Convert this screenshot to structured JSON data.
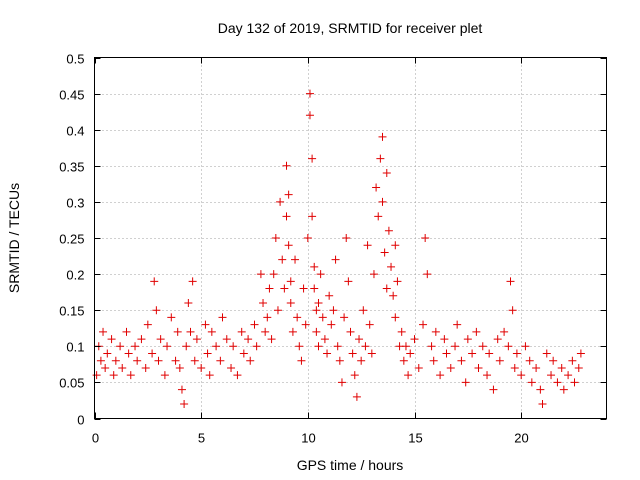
{
  "chart_data": {
    "type": "scatter",
    "title": "Day 132 of 2019, SRMTID for receiver plet",
    "xlabel": "GPS time / hours",
    "ylabel": "SRMTID / TECUs",
    "xlim": [
      0,
      24
    ],
    "ylim": [
      0,
      0.5
    ],
    "xticks": [
      0,
      5,
      10,
      15,
      20
    ],
    "xtick_labels": [
      "0",
      "5",
      "10",
      "15",
      "20"
    ],
    "yticks": [
      0,
      0.05,
      0.1,
      0.15,
      0.2,
      0.25,
      0.3,
      0.35,
      0.4,
      0.45,
      0.5
    ],
    "ytick_labels": [
      "0",
      "0.05",
      "0.1",
      "0.15",
      "0.2",
      "0.25",
      "0.3",
      "0.35",
      "0.4",
      "0.45",
      "0.5"
    ],
    "grid": true,
    "marker": "+",
    "color": "#e00000",
    "series": [
      {
        "name": "SRMTID",
        "x": [
          0.1,
          0.2,
          0.3,
          0.4,
          0.5,
          0.6,
          0.8,
          0.9,
          1.0,
          1.2,
          1.3,
          1.5,
          1.6,
          1.7,
          1.9,
          2.0,
          2.2,
          2.4,
          2.5,
          2.7,
          2.8,
          2.9,
          3.0,
          3.1,
          3.3,
          3.4,
          3.6,
          3.8,
          3.9,
          4.0,
          4.1,
          4.2,
          4.3,
          4.4,
          4.5,
          4.6,
          4.7,
          4.8,
          5.0,
          5.2,
          5.3,
          5.4,
          5.5,
          5.7,
          5.9,
          6.0,
          6.2,
          6.4,
          6.5,
          6.7,
          6.9,
          7.0,
          7.2,
          7.3,
          7.5,
          7.6,
          7.8,
          7.9,
          8.0,
          8.1,
          8.2,
          8.3,
          8.4,
          8.5,
          8.6,
          8.7,
          8.8,
          8.9,
          9.0,
          9.0,
          9.1,
          9.1,
          9.2,
          9.2,
          9.3,
          9.4,
          9.5,
          9.6,
          9.7,
          9.8,
          9.9,
          10.0,
          10.1,
          10.1,
          10.2,
          10.2,
          10.3,
          10.3,
          10.4,
          10.4,
          10.5,
          10.5,
          10.6,
          10.7,
          10.8,
          10.9,
          11.0,
          11.1,
          11.2,
          11.3,
          11.4,
          11.5,
          11.6,
          11.7,
          11.8,
          11.9,
          12.0,
          12.1,
          12.2,
          12.3,
          12.4,
          12.5,
          12.6,
          12.7,
          12.8,
          12.9,
          13.0,
          13.1,
          13.2,
          13.3,
          13.4,
          13.5,
          13.5,
          13.6,
          13.7,
          13.7,
          13.8,
          13.9,
          14.0,
          14.1,
          14.1,
          14.2,
          14.3,
          14.4,
          14.5,
          14.6,
          14.7,
          14.8,
          15.0,
          15.2,
          15.4,
          15.5,
          15.6,
          15.8,
          15.9,
          16.0,
          16.2,
          16.4,
          16.5,
          16.7,
          16.9,
          17.0,
          17.2,
          17.4,
          17.5,
          17.7,
          17.9,
          18.0,
          18.2,
          18.4,
          18.5,
          18.7,
          18.9,
          19.0,
          19.2,
          19.4,
          19.5,
          19.6,
          19.7,
          19.8,
          20.0,
          20.2,
          20.4,
          20.5,
          20.7,
          20.9,
          21.0,
          21.2,
          21.4,
          21.5,
          21.7,
          21.9,
          22.0,
          22.2,
          22.4,
          22.5,
          22.7,
          22.8
        ],
        "y": [
          0.06,
          0.1,
          0.08,
          0.12,
          0.07,
          0.09,
          0.11,
          0.06,
          0.08,
          0.1,
          0.07,
          0.12,
          0.09,
          0.06,
          0.1,
          0.08,
          0.11,
          0.07,
          0.13,
          0.09,
          0.19,
          0.15,
          0.08,
          0.11,
          0.06,
          0.1,
          0.14,
          0.08,
          0.12,
          0.07,
          0.04,
          0.02,
          0.1,
          0.16,
          0.12,
          0.19,
          0.08,
          0.11,
          0.07,
          0.13,
          0.09,
          0.06,
          0.12,
          0.1,
          0.08,
          0.14,
          0.11,
          0.07,
          0.1,
          0.06,
          0.12,
          0.09,
          0.11,
          0.08,
          0.13,
          0.1,
          0.2,
          0.16,
          0.12,
          0.14,
          0.18,
          0.11,
          0.2,
          0.25,
          0.15,
          0.3,
          0.22,
          0.18,
          0.35,
          0.28,
          0.24,
          0.31,
          0.19,
          0.16,
          0.12,
          0.22,
          0.14,
          0.1,
          0.08,
          0.18,
          0.13,
          0.25,
          0.45,
          0.42,
          0.36,
          0.28,
          0.21,
          0.18,
          0.15,
          0.12,
          0.1,
          0.16,
          0.2,
          0.14,
          0.11,
          0.09,
          0.17,
          0.13,
          0.15,
          0.22,
          0.1,
          0.08,
          0.05,
          0.14,
          0.25,
          0.19,
          0.12,
          0.09,
          0.06,
          0.03,
          0.11,
          0.08,
          0.15,
          0.1,
          0.24,
          0.13,
          0.09,
          0.2,
          0.32,
          0.28,
          0.36,
          0.39,
          0.3,
          0.23,
          0.18,
          0.34,
          0.26,
          0.21,
          0.17,
          0.14,
          0.24,
          0.19,
          0.1,
          0.12,
          0.08,
          0.1,
          0.06,
          0.09,
          0.11,
          0.07,
          0.13,
          0.25,
          0.2,
          0.1,
          0.08,
          0.12,
          0.06,
          0.11,
          0.09,
          0.07,
          0.1,
          0.13,
          0.08,
          0.05,
          0.11,
          0.09,
          0.12,
          0.07,
          0.1,
          0.06,
          0.09,
          0.04,
          0.11,
          0.08,
          0.12,
          0.1,
          0.19,
          0.15,
          0.07,
          0.09,
          0.06,
          0.1,
          0.08,
          0.05,
          0.07,
          0.04,
          0.02,
          0.09,
          0.06,
          0.08,
          0.05,
          0.07,
          0.04,
          0.06,
          0.08,
          0.05,
          0.07,
          0.09
        ]
      }
    ]
  }
}
